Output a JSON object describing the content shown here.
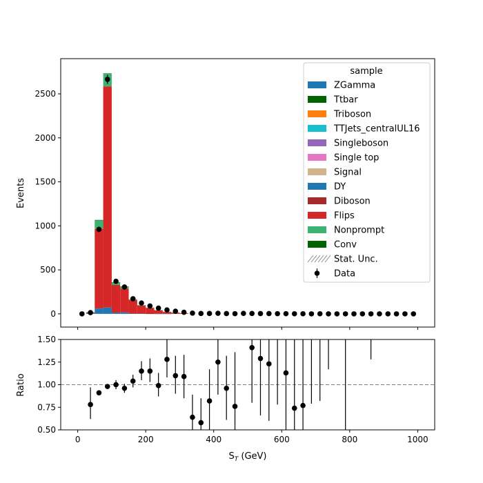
{
  "chart_data": [
    {
      "type": "bar",
      "stacked": true,
      "xlabel": "S_T (GeV)",
      "ylabel": "Events",
      "xlim": [
        -50,
        1050
      ],
      "ylim": [
        -150,
        2900
      ],
      "yticks": [
        0,
        500,
        1000,
        1500,
        2000,
        2500
      ],
      "legend_title": "sample",
      "legend_placement": "top-right",
      "bin_centers": [
        37.5,
        62.5,
        87.5,
        112.5,
        137.5,
        162.5,
        187.5,
        212.5,
        237.5,
        262.5,
        287.5,
        312.5
      ],
      "series": [
        {
          "name": "ZGamma",
          "color": "#1f77b4",
          "values": [
            0,
            0,
            0,
            0,
            0,
            0,
            0,
            0,
            0,
            0,
            0,
            0
          ]
        },
        {
          "name": "Ttbar",
          "color": "#006400",
          "values": [
            0,
            0,
            0,
            0,
            0,
            0,
            0,
            0,
            0,
            0,
            0,
            0
          ]
        },
        {
          "name": "Triboson",
          "color": "#ff7f0e",
          "values": [
            0,
            0,
            0,
            0,
            0,
            0,
            0,
            0,
            0,
            0,
            0,
            0
          ]
        },
        {
          "name": "TTJets_centralUL16",
          "color": "#17becf",
          "values": [
            0,
            0,
            0,
            0,
            0,
            0,
            0,
            0,
            0,
            0,
            0,
            0
          ]
        },
        {
          "name": "Singleboson",
          "color": "#9467bd",
          "values": [
            0,
            0,
            0,
            0,
            0,
            0,
            0,
            0,
            0,
            0,
            0,
            0
          ]
        },
        {
          "name": "Single top",
          "color": "#e377c2",
          "values": [
            0,
            0,
            0,
            0,
            0,
            0,
            0,
            0,
            0,
            0,
            0,
            0
          ]
        },
        {
          "name": "Signal",
          "color": "#d2b48c",
          "values": [
            0,
            0,
            0,
            0,
            0,
            0,
            0,
            0,
            0,
            0,
            0,
            0
          ]
        },
        {
          "name": "DY",
          "color": "#1f77b4",
          "values": [
            10,
            60,
            70,
            15,
            18,
            6,
            4,
            2,
            1,
            1,
            0,
            0
          ]
        },
        {
          "name": "Diboson",
          "color": "#a52a2a",
          "values": [
            0,
            5,
            5,
            3,
            2,
            1,
            1,
            1,
            0,
            0,
            0,
            0
          ]
        },
        {
          "name": "Flips",
          "color": "#d62728",
          "values": [
            8,
            900,
            2510,
            310,
            265,
            150,
            90,
            65,
            40,
            22,
            15,
            8
          ]
        },
        {
          "name": "Nonprompt",
          "color": "#3cb371",
          "values": [
            0,
            100,
            145,
            30,
            25,
            10,
            5,
            3,
            2,
            1,
            1,
            0
          ]
        },
        {
          "name": "Conv",
          "color": "#006400",
          "values": [
            0,
            2,
            3,
            1,
            1,
            0,
            0,
            0,
            0,
            0,
            0,
            0
          ]
        }
      ],
      "legend_extra": [
        {
          "name": "Stat. Unc.",
          "style": "hatch"
        },
        {
          "name": "Data",
          "style": "errorbar-marker"
        }
      ],
      "data_points": {
        "name": "Data",
        "x": [
          12.5,
          37.5,
          62.5,
          87.5,
          112.5,
          137.5,
          162.5,
          187.5,
          212.5,
          237.5,
          262.5,
          287.5,
          312.5,
          337.5,
          362.5,
          387.5,
          412.5,
          437.5,
          462.5,
          487.5,
          512.5,
          537.5,
          562.5,
          587.5,
          612.5,
          637.5,
          662.5,
          687.5,
          712.5,
          737.5,
          762.5,
          787.5,
          812.5,
          837.5,
          862.5,
          887.5,
          912.5,
          937.5,
          962.5,
          987.5
        ],
        "y": [
          0,
          14,
          960,
          2665,
          370,
          305,
          172,
          123,
          90,
          65,
          45,
          30,
          18,
          8,
          4,
          4,
          6,
          3,
          2,
          5,
          4,
          3,
          3,
          2,
          2,
          1,
          1,
          0,
          1,
          0,
          0,
          0,
          0,
          0,
          0,
          0,
          0,
          0,
          0,
          0
        ]
      }
    },
    {
      "type": "scatter",
      "xlabel": "S_T (GeV)",
      "ylabel": "Ratio",
      "xlim": [
        -50,
        1050
      ],
      "ylim": [
        0.5,
        1.5
      ],
      "xticks": [
        0,
        200,
        400,
        600,
        800,
        1000
      ],
      "yticks": [
        0.5,
        0.75,
        1.0,
        1.25,
        1.5
      ],
      "ytick_labels": [
        "0.50",
        "0.75",
        "1.00",
        "1.25",
        "1.50"
      ],
      "reference_line": 1.0,
      "points": [
        {
          "x": 37.5,
          "y": 0.78,
          "lo": 0.62,
          "hi": 0.97
        },
        {
          "x": 62.5,
          "y": 0.91,
          "lo": 0.89,
          "hi": 0.93
        },
        {
          "x": 87.5,
          "y": 0.98,
          "lo": 0.96,
          "hi": 1.0
        },
        {
          "x": 112.5,
          "y": 1.0,
          "lo": 0.95,
          "hi": 1.05
        },
        {
          "x": 137.5,
          "y": 0.96,
          "lo": 0.91,
          "hi": 1.01
        },
        {
          "x": 162.5,
          "y": 1.04,
          "lo": 0.97,
          "hi": 1.11
        },
        {
          "x": 187.5,
          "y": 1.15,
          "lo": 1.05,
          "hi": 1.26
        },
        {
          "x": 212.5,
          "y": 1.15,
          "lo": 1.03,
          "hi": 1.29
        },
        {
          "x": 237.5,
          "y": 0.99,
          "lo": 0.87,
          "hi": 1.13
        },
        {
          "x": 262.5,
          "y": 1.28,
          "lo": 1.08,
          "hi": 1.5
        },
        {
          "x": 287.5,
          "y": 1.1,
          "lo": 0.9,
          "hi": 1.32
        },
        {
          "x": 312.5,
          "y": 1.09,
          "lo": 0.85,
          "hi": 1.33
        },
        {
          "x": 337.5,
          "y": 0.64,
          "lo": 0.5,
          "hi": 0.89
        },
        {
          "x": 362.5,
          "y": 0.58,
          "lo": 0.5,
          "hi": 0.85
        },
        {
          "x": 387.5,
          "y": 0.82,
          "lo": 0.5,
          "hi": 1.17
        },
        {
          "x": 412.5,
          "y": 1.25,
          "lo": 0.89,
          "hi": 1.5
        },
        {
          "x": 437.5,
          "y": 0.96,
          "lo": 0.61,
          "hi": 1.32
        },
        {
          "x": 462.5,
          "y": 0.76,
          "lo": 0.5,
          "hi": 1.36
        },
        {
          "x": 512.5,
          "y": 1.41,
          "lo": 0.8,
          "hi": 1.5
        },
        {
          "x": 537.5,
          "y": 1.29,
          "lo": 0.66,
          "hi": 1.5
        },
        {
          "x": 562.5,
          "y": 1.23,
          "lo": 0.6,
          "hi": 1.5
        },
        {
          "x": 587.5,
          "y": null,
          "lo": 0.78,
          "hi": 1.5
        },
        {
          "x": 612.5,
          "y": 1.13,
          "lo": 0.5,
          "hi": 1.5
        },
        {
          "x": 637.5,
          "y": 0.74,
          "lo": 0.5,
          "hi": 1.5
        },
        {
          "x": 662.5,
          "y": 0.77,
          "lo": 0.5,
          "hi": 1.5
        },
        {
          "x": 687.5,
          "y": null,
          "lo": 0.79,
          "hi": 1.5
        },
        {
          "x": 712.5,
          "y": null,
          "lo": 0.82,
          "hi": 1.5
        },
        {
          "x": 737.5,
          "y": null,
          "lo": 1.17,
          "hi": 1.5
        },
        {
          "x": 787.5,
          "y": null,
          "lo": 0.5,
          "hi": 1.5
        },
        {
          "x": 862.5,
          "y": null,
          "lo": 1.28,
          "hi": 1.5
        }
      ]
    }
  ]
}
